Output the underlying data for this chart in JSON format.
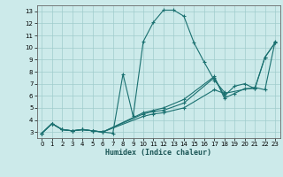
{
  "xlabel": "Humidex (Indice chaleur)",
  "bg_color": "#cceaea",
  "grid_color": "#a0cccc",
  "line_color": "#1a7070",
  "xlim": [
    -0.5,
    23.5
  ],
  "ylim": [
    2.5,
    13.5
  ],
  "xticks": [
    0,
    1,
    2,
    3,
    4,
    5,
    6,
    7,
    8,
    9,
    10,
    11,
    12,
    13,
    14,
    15,
    16,
    17,
    18,
    19,
    20,
    21,
    22,
    23
  ],
  "yticks": [
    3,
    4,
    5,
    6,
    7,
    8,
    9,
    10,
    11,
    12,
    13
  ],
  "lines": [
    {
      "x": [
        0,
        1,
        2,
        3,
        4,
        5,
        6,
        7,
        8,
        9,
        10,
        11,
        12,
        13,
        14,
        15,
        16,
        17,
        18
      ],
      "y": [
        2.9,
        3.7,
        3.2,
        3.1,
        3.2,
        3.1,
        3.0,
        2.9,
        7.8,
        4.3,
        10.5,
        12.1,
        13.1,
        13.1,
        12.6,
        10.4,
        8.8,
        7.3,
        6.3
      ]
    },
    {
      "x": [
        0,
        1,
        2,
        3,
        4,
        5,
        6,
        10,
        11,
        12,
        14,
        17,
        18,
        21,
        22,
        23
      ],
      "y": [
        2.9,
        3.7,
        3.2,
        3.1,
        3.2,
        3.1,
        3.0,
        4.3,
        4.5,
        4.6,
        5.0,
        6.5,
        6.2,
        6.7,
        6.5,
        10.5
      ]
    },
    {
      "x": [
        0,
        1,
        2,
        3,
        4,
        5,
        6,
        10,
        11,
        12,
        14,
        17,
        18,
        19,
        20,
        21,
        22,
        23
      ],
      "y": [
        2.9,
        3.7,
        3.2,
        3.1,
        3.2,
        3.1,
        3.0,
        4.5,
        4.7,
        4.8,
        5.4,
        7.5,
        6.0,
        6.8,
        7.0,
        6.6,
        9.2,
        10.4
      ]
    },
    {
      "x": [
        0,
        1,
        2,
        3,
        4,
        5,
        6,
        10,
        11,
        12,
        14,
        17,
        18,
        19,
        20,
        21,
        22,
        23
      ],
      "y": [
        2.9,
        3.7,
        3.2,
        3.1,
        3.2,
        3.1,
        3.0,
        4.6,
        4.8,
        5.0,
        5.7,
        7.6,
        5.8,
        6.2,
        6.6,
        6.6,
        9.2,
        10.4
      ]
    }
  ]
}
